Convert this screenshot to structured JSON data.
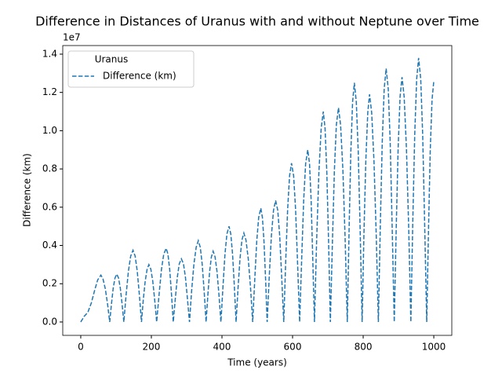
{
  "chart_data": {
    "type": "line",
    "title": "Difference in Distances of Uranus with and without Neptune over Time",
    "xlabel": "Time (years)",
    "ylabel": "Difference (km)",
    "y_offset_label": "1e7",
    "legend_title": "Uranus",
    "legend_position": "upper left",
    "xlim": [
      -51,
      1051
    ],
    "ylim": [
      -0.07,
      1.445
    ],
    "xticks": [
      0,
      200,
      400,
      600,
      800,
      1000
    ],
    "yticks": [
      {
        "value": 0,
        "label": "0.0"
      },
      0.2,
      0.4,
      0.6,
      0.8,
      {
        "value": 1,
        "label": "1.0"
      },
      1.2,
      1.4
    ],
    "x": [
      0,
      10,
      20,
      30,
      40,
      48,
      57,
      63,
      69.5,
      76,
      82,
      87,
      92,
      97,
      102,
      107,
      112,
      117,
      122,
      128.5,
      135,
      141.5,
      148,
      154,
      160,
      166,
      172,
      177,
      182.5,
      188,
      193,
      198.5,
      204,
      209.5,
      215,
      222,
      228.5,
      235,
      242,
      247,
      252,
      257,
      262,
      268,
      273.5,
      279,
      285,
      291,
      296.5,
      302,
      308,
      314,
      320.5,
      327,
      333,
      338.5,
      344,
      349.5,
      355,
      360,
      365,
      370,
      375,
      380.5,
      386,
      391.5,
      397,
      403,
      408.5,
      414,
      420,
      425,
      430,
      435,
      440,
      445.5,
      451,
      456.5,
      462,
      468,
      474.5,
      481,
      487,
      493,
      498.5,
      504,
      510,
      514.5,
      519,
      523.5,
      528,
      534,
      540,
      546,
      552,
      558,
      563.5,
      569,
      575,
      580.5,
      586,
      591.5,
      597,
      603,
      608.5,
      614,
      620,
      626,
      631.5,
      637,
      643,
      648,
      652.5,
      657,
      662,
      668,
      674.5,
      681,
      687,
      692,
      697,
      702,
      707,
      713,
      718.5,
      724,
      730,
      736,
      742.5,
      749,
      755,
      760,
      765,
      770,
      775,
      780.5,
      786,
      791.5,
      797,
      802,
      807.5,
      813,
      818,
      824,
      830.5,
      837,
      843,
      848.5,
      854,
      859.5,
      865,
      871,
      876.5,
      882,
      888,
      893.5,
      899,
      904.5,
      910,
      916,
      922.5,
      929,
      935,
      940.5,
      946,
      951.5,
      957,
      963,
      968.5,
      974,
      980,
      985,
      990,
      995,
      1000
    ],
    "series": [
      {
        "name": "Difference (km)",
        "color": "#1f77b4",
        "dash": true,
        "values": [
          0,
          0.03,
          0.05,
          0.1,
          0.17,
          0.22,
          0.245,
          0.225,
          0.174,
          0.093,
          0,
          0.095,
          0.178,
          0.23,
          0.25,
          0.23,
          0.178,
          0.095,
          0,
          0.143,
          0.266,
          0.345,
          0.375,
          0.345,
          0.266,
          0.143,
          0,
          0.114,
          0.213,
          0.276,
          0.3,
          0.276,
          0.213,
          0.114,
          0,
          0.146,
          0.273,
          0.354,
          0.385,
          0.354,
          0.273,
          0.146,
          0,
          0.125,
          0.234,
          0.304,
          0.33,
          0.304,
          0.234,
          0.125,
          0,
          0.162,
          0.302,
          0.391,
          0.425,
          0.391,
          0.302,
          0.162,
          0,
          0.141,
          0.263,
          0.34,
          0.37,
          0.34,
          0.263,
          0.141,
          0,
          0.19,
          0.355,
          0.46,
          0.5,
          0.46,
          0.355,
          0.19,
          0,
          0.177,
          0.33,
          0.428,
          0.465,
          0.428,
          0.33,
          0.177,
          0,
          0.226,
          0.422,
          0.547,
          0.595,
          0.547,
          0.422,
          0.226,
          0,
          0.241,
          0.451,
          0.584,
          0.635,
          0.584,
          0.451,
          0.241,
          0,
          0.315,
          0.589,
          0.764,
          0.83,
          0.764,
          0.589,
          0.315,
          0,
          0.342,
          0.639,
          0.828,
          0.9,
          0.828,
          0.639,
          0.342,
          0,
          0.418,
          0.781,
          1.012,
          1.1,
          1.012,
          0.781,
          0.418,
          0,
          0.426,
          0.795,
          1.03,
          1.12,
          1.03,
          0.795,
          0.426,
          0,
          0.475,
          0.888,
          1.15,
          1.25,
          1.15,
          0.888,
          0.475,
          0,
          0.452,
          0.845,
          1.095,
          1.19,
          1.095,
          0.845,
          0.452,
          0,
          0.504,
          0.941,
          1.219,
          1.325,
          1.219,
          0.941,
          0.504,
          0,
          0.486,
          0.909,
          1.178,
          1.28,
          1.178,
          0.909,
          0.486,
          0,
          0.524,
          0.98,
          1.27,
          1.38,
          1.27,
          0.98,
          0.524,
          0,
          0.48,
          0.9,
          1.16,
          1.26
        ]
      }
    ]
  }
}
